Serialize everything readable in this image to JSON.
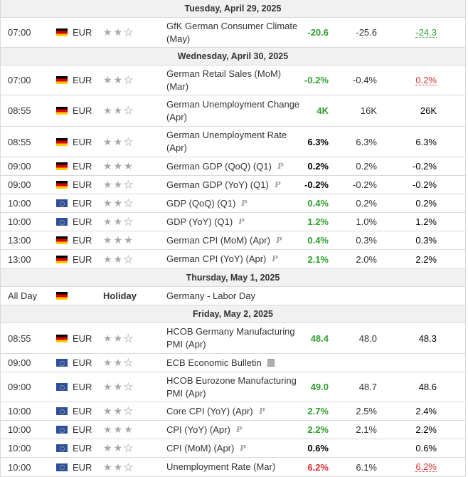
{
  "days": [
    {
      "label": "Tuesday, April 29, 2025",
      "events": [
        {
          "time": "07:00",
          "flag": "de",
          "currency": "EUR",
          "stars": 2,
          "event": "GfK German Consumer Climate (May)",
          "icon": "",
          "actual": "-20.6",
          "actual_color": "green",
          "forecast": "-25.6",
          "previous": "-24.3",
          "previous_style": "prev-green",
          "h": 42
        }
      ]
    },
    {
      "label": "Wednesday, April 30, 2025",
      "events": [
        {
          "time": "07:00",
          "flag": "de",
          "currency": "EUR",
          "stars": 2,
          "event": "German Retail Sales (MoM) (Mar)",
          "icon": "",
          "actual": "-0.2%",
          "actual_color": "green",
          "forecast": "-0.4%",
          "previous": "0.2%",
          "previous_style": "prev-red",
          "h": 42
        },
        {
          "time": "08:55",
          "flag": "de",
          "currency": "EUR",
          "stars": 2,
          "event": "German Unemployment Change (Apr)",
          "icon": "",
          "actual": "4K",
          "actual_color": "green",
          "forecast": "16K",
          "previous": "26K",
          "previous_style": "plain",
          "h": 44
        },
        {
          "time": "08:55",
          "flag": "de",
          "currency": "EUR",
          "stars": 2,
          "event": "German Unemployment Rate (Apr)",
          "icon": "",
          "actual": "6.3%",
          "actual_color": "black",
          "forecast": "6.3%",
          "previous": "6.3%",
          "previous_style": "plain",
          "h": 43
        },
        {
          "time": "09:00",
          "flag": "de",
          "currency": "EUR",
          "stars": 3,
          "event": "German GDP (QoQ) (Q1)",
          "icon": "p",
          "actual": "0.2%",
          "actual_color": "black",
          "forecast": "0.2%",
          "previous": "-0.2%",
          "previous_style": "plain",
          "h": 26
        },
        {
          "time": "09:00",
          "flag": "de",
          "currency": "EUR",
          "stars": 2,
          "event": "German GDP (YoY) (Q1)",
          "icon": "p",
          "actual": "-0.2%",
          "actual_color": "black",
          "forecast": "-0.2%",
          "previous": "-0.2%",
          "previous_style": "plain",
          "h": 26
        },
        {
          "time": "10:00",
          "flag": "eu",
          "currency": "EUR",
          "stars": 2,
          "event": "GDP (QoQ) (Q1)",
          "icon": "p",
          "actual": "0.4%",
          "actual_color": "green",
          "forecast": "0.2%",
          "previous": "0.2%",
          "previous_style": "plain",
          "h": 26
        },
        {
          "time": "10:00",
          "flag": "eu",
          "currency": "EUR",
          "stars": 2,
          "event": "GDP (YoY) (Q1)",
          "icon": "p",
          "actual": "1.2%",
          "actual_color": "green",
          "forecast": "1.0%",
          "previous": "1.2%",
          "previous_style": "plain",
          "h": 26
        },
        {
          "time": "13:00",
          "flag": "de",
          "currency": "EUR",
          "stars": 3,
          "event": "German CPI (MoM) (Apr)",
          "icon": "p",
          "actual": "0.4%",
          "actual_color": "green",
          "forecast": "0.3%",
          "previous": "0.3%",
          "previous_style": "plain",
          "h": 26
        },
        {
          "time": "13:00",
          "flag": "de",
          "currency": "EUR",
          "stars": 2,
          "event": "German CPI (YoY) (Apr)",
          "icon": "p",
          "actual": "2.1%",
          "actual_color": "green",
          "forecast": "2.0%",
          "previous": "2.2%",
          "previous_style": "plain",
          "h": 27
        }
      ]
    },
    {
      "label": "Thursday, May 1, 2025",
      "events": [
        {
          "time": "All Day",
          "flag": "de",
          "currency": "",
          "holiday": "Holiday",
          "stars": 0,
          "event": "Germany - Labor Day",
          "icon": "",
          "actual": "",
          "actual_color": "black",
          "forecast": "",
          "previous": "",
          "previous_style": "plain",
          "h": 26
        }
      ]
    },
    {
      "label": "Friday, May 2, 2025",
      "events": [
        {
          "time": "08:55",
          "flag": "de",
          "currency": "EUR",
          "stars": 2,
          "event": "HCOB Germany Manufacturing PMI (Apr)",
          "icon": "",
          "actual": "48.4",
          "actual_color": "green",
          "forecast": "48.0",
          "previous": "48.3",
          "previous_style": "plain",
          "h": 43
        },
        {
          "time": "09:00",
          "flag": "eu",
          "currency": "EUR",
          "stars": 2,
          "event": "ECB Economic Bulletin",
          "icon": "doc",
          "actual": "",
          "actual_color": "black",
          "forecast": "",
          "previous": "",
          "previous_style": "plain",
          "h": 26
        },
        {
          "time": "09:00",
          "flag": "eu",
          "currency": "EUR",
          "stars": 2,
          "event": "HCOB Eurozone Manufacturing PMI (Apr)",
          "icon": "",
          "actual": "49.0",
          "actual_color": "green",
          "forecast": "48.7",
          "previous": "48.6",
          "previous_style": "plain",
          "h": 42
        },
        {
          "time": "10:00",
          "flag": "eu",
          "currency": "EUR",
          "stars": 2,
          "event": "Core CPI (YoY) (Apr)",
          "icon": "p",
          "actual": "2.7%",
          "actual_color": "green",
          "forecast": "2.5%",
          "previous": "2.4%",
          "previous_style": "plain",
          "h": 26
        },
        {
          "time": "10:00",
          "flag": "eu",
          "currency": "EUR",
          "stars": 3,
          "event": "CPI (YoY) (Apr)",
          "icon": "p",
          "actual": "2.2%",
          "actual_color": "green",
          "forecast": "2.1%",
          "previous": "2.2%",
          "previous_style": "plain",
          "h": 26
        },
        {
          "time": "10:00",
          "flag": "eu",
          "currency": "EUR",
          "stars": 2,
          "event": "CPI (MoM) (Apr)",
          "icon": "p",
          "actual": "0.6%",
          "actual_color": "black",
          "forecast": "",
          "previous": "0.6%",
          "previous_style": "plain",
          "h": 26
        },
        {
          "time": "10:00",
          "flag": "eu",
          "currency": "EUR",
          "stars": 2,
          "event": "Unemployment Rate (Mar)",
          "icon": "",
          "actual": "6.2%",
          "actual_color": "red",
          "forecast": "6.1%",
          "previous": "6.2%",
          "previous_style": "prev-red",
          "h": 27
        }
      ]
    }
  ]
}
